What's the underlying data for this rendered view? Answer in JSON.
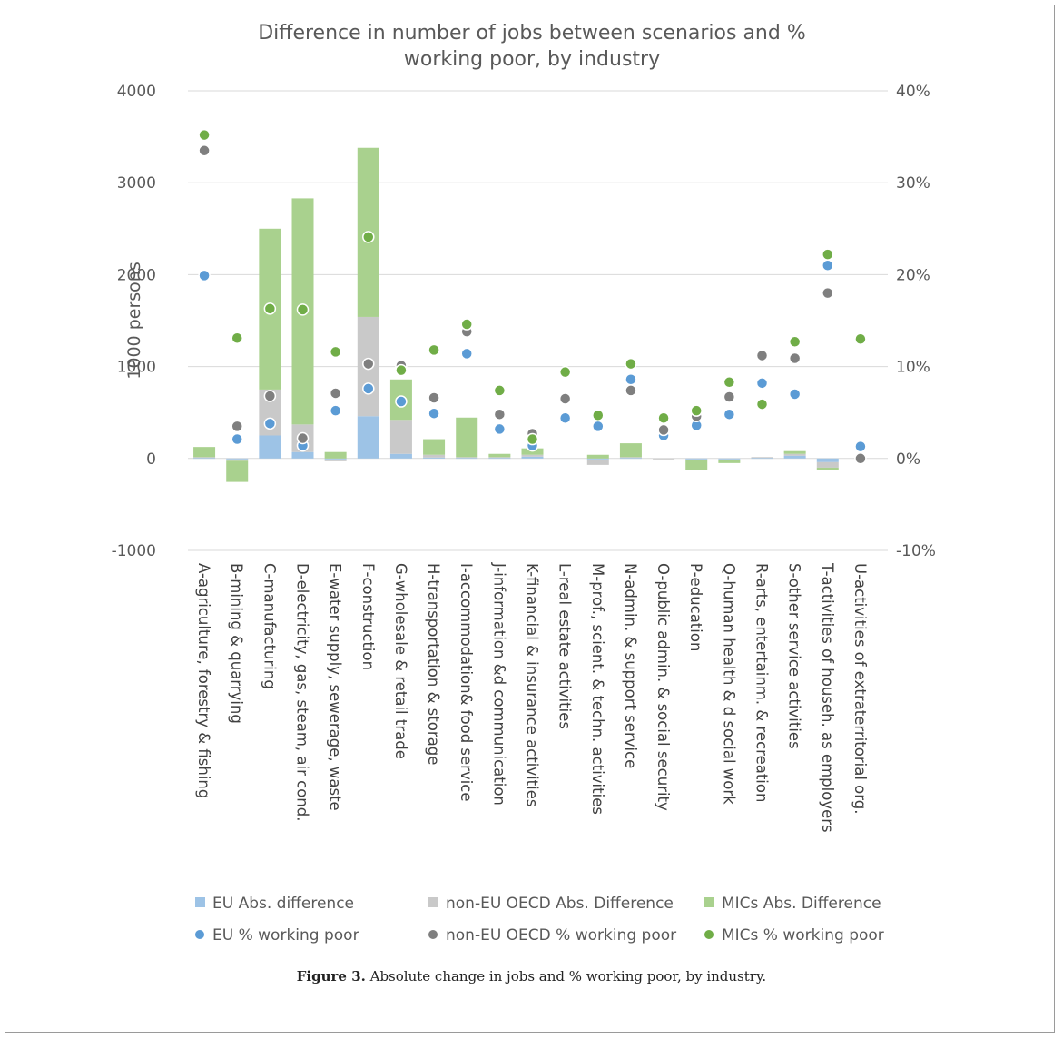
{
  "chart_data": {
    "type": "bar",
    "title": "Difference in number of jobs between scenarios and % working poor, by industry",
    "ylabel": "1000 persons",
    "ylim": [
      -1000,
      4000
    ],
    "y_ticks": [
      -1000,
      0,
      1000,
      2000,
      3000,
      4000
    ],
    "y2lim": [
      -0.1,
      0.4
    ],
    "y2_ticks": [
      "-10%",
      "0%",
      "10%",
      "20%",
      "30%",
      "40%"
    ],
    "gridlines": true,
    "legend_position": "bottom",
    "categories": [
      "A-agriculture, forestry & fishing",
      "B-mining & quarrying",
      "C-manufacturing",
      "D-electricity, gas, steam, air cond.",
      "E-water supply, sewerage, waste",
      "F-construction",
      "G-wholesale & retail trade",
      "H-transportation & storage",
      "I-accommodation& food service",
      "J-information &d communication",
      "K-financial & insurance activities",
      "L-real estate activities",
      "M-prof., scient. & techn. activities",
      "N-admin. & support service",
      "O-public admin. & social security",
      "P-education",
      "Q-human health & d social work",
      "R-arts, entertainm. & recreation",
      "S-other service activities",
      "T-activities of househ. as employers",
      "U-activities of extraterritorial org."
    ],
    "bar_series": [
      {
        "name": "EU Abs. difference",
        "color": "#9dc3e6",
        "values": [
          5,
          -10,
          250,
          70,
          -10,
          460,
          50,
          10,
          5,
          5,
          20,
          0,
          -10,
          5,
          0,
          -10,
          -10,
          5,
          30,
          -40,
          0
        ]
      },
      {
        "name": "non-EU OECD Abs. Difference",
        "color": "#c9c9c9",
        "values": [
          10,
          -15,
          500,
          300,
          -20,
          1080,
          370,
          30,
          10,
          10,
          20,
          0,
          -60,
          10,
          -10,
          -10,
          -10,
          10,
          20,
          -60,
          0
        ]
      },
      {
        "name": "MICs Abs. Difference",
        "color": "#a9d18e",
        "values": [
          110,
          -230,
          1750,
          2460,
          70,
          1840,
          440,
          170,
          430,
          35,
          70,
          0,
          40,
          150,
          0,
          -110,
          -30,
          0,
          30,
          -30,
          0
        ]
      }
    ],
    "point_series": [
      {
        "name": "EU % working poor",
        "color": "#5b9bd5",
        "values": [
          0.199,
          0.021,
          0.038,
          0.014,
          0.052,
          0.076,
          0.062,
          0.049,
          0.114,
          0.032,
          0.014,
          0.044,
          0.035,
          0.086,
          0.025,
          0.036,
          0.048,
          0.082,
          0.07,
          0.21,
          0.013
        ]
      },
      {
        "name": "non-EU OECD % working poor",
        "color": "#7f7f7f",
        "values": [
          0.335,
          0.035,
          0.068,
          0.022,
          0.071,
          0.103,
          0.101,
          0.066,
          0.138,
          0.048,
          0.027,
          0.065,
          0.048,
          0.074,
          0.031,
          0.046,
          0.067,
          0.112,
          0.109,
          0.18,
          0.0
        ]
      },
      {
        "name": "MICs % working poor",
        "color": "#70ad47",
        "values": [
          0.352,
          0.131,
          0.163,
          0.162,
          0.116,
          0.241,
          0.096,
          0.118,
          0.146,
          0.074,
          0.021,
          0.094,
          0.047,
          0.103,
          0.044,
          0.052,
          0.083,
          0.059,
          0.127,
          0.222,
          0.13
        ]
      }
    ]
  },
  "caption": {
    "label": "Figure 3.",
    "text": " Absolute change in jobs and % working poor, by industry."
  }
}
